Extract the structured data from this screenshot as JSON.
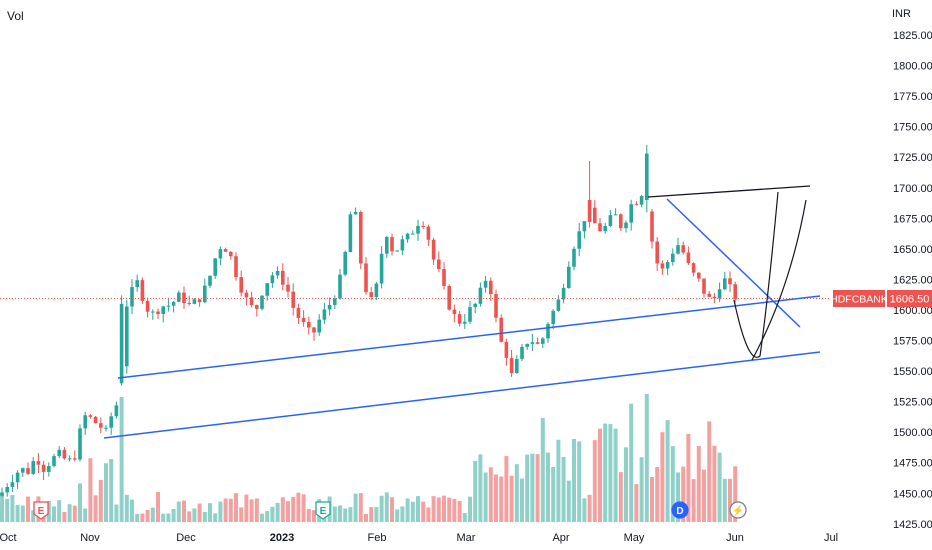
{
  "chart_data": {
    "type": "candlestick",
    "symbol": "HDFCBANK",
    "last_price": "1606.50",
    "currency_label": "INR",
    "volume_label": "Vol",
    "y_ticks": [
      "1825.00",
      "1800.00",
      "1775.00",
      "1750.00",
      "1725.00",
      "1700.00",
      "1675.00",
      "1650.00",
      "1625.00",
      "1600.00",
      "1575.00",
      "1550.00",
      "1525.00",
      "1500.00",
      "1475.00",
      "1450.00",
      "1425.00"
    ],
    "x_ticks": [
      {
        "label": "Oct",
        "bold": false
      },
      {
        "label": "Nov",
        "bold": false
      },
      {
        "label": "Dec",
        "bold": false
      },
      {
        "label": "2023",
        "bold": true
      },
      {
        "label": "Feb",
        "bold": false
      },
      {
        "label": "Mar",
        "bold": false
      },
      {
        "label": "Apr",
        "bold": false
      },
      {
        "label": "May",
        "bold": false
      },
      {
        "label": "Jun",
        "bold": false
      },
      {
        "label": "Jul",
        "bold": false
      }
    ],
    "ylim": [
      1420,
      1835
    ],
    "markers": [
      {
        "label": "E",
        "type": "earnings"
      },
      {
        "label": "E",
        "type": "earnings"
      },
      {
        "label": "D",
        "type": "dividend"
      },
      {
        "label": "⚡",
        "type": "split"
      }
    ],
    "colors": {
      "up": "#26a69a",
      "down": "#ef5350",
      "vol_up": "#8fd1c9",
      "vol_down": "#f3a1a0",
      "trendline": "#2962ff",
      "drawing": "#131722",
      "price_tag": "#ef5350"
    },
    "trendlines": [
      {
        "name": "lower-channel",
        "from": [
          "Nov",
          "1490"
        ],
        "to": [
          "Jun",
          "1562"
        ]
      },
      {
        "name": "upper-channel",
        "from": [
          "Nov",
          "1540"
        ],
        "to": [
          "Jun",
          "1608"
        ]
      },
      {
        "name": "falling-resistance",
        "from": [
          "May",
          "1690"
        ],
        "to": [
          "Jun",
          "1580"
        ]
      },
      {
        "name": "top-resistance",
        "from": [
          "May",
          "1690"
        ],
        "to": [
          "Jun",
          "1699"
        ]
      }
    ]
  }
}
